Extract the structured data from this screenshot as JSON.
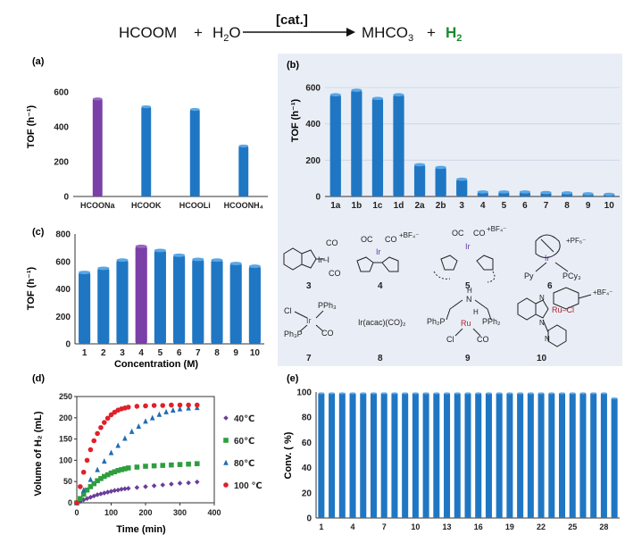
{
  "header": {
    "reactant1": "HCOOM",
    "plus1": "+",
    "reactant2": "H",
    "reactant2_sub": "2",
    "reactant2_tail": "O",
    "catalyst": "[cat.]",
    "product1": "MHCO",
    "product1_sub": "3",
    "plus2": "+",
    "product2": "H",
    "product2_sub": "2"
  },
  "colors": {
    "bar": "#1f77c4",
    "bar_dark": "#0d4f8b",
    "highlight": "#7b3fa8",
    "panel_b_bg": "#e9eef6",
    "h2_green": "#1a8a2e"
  },
  "chart_data": [
    {
      "panel": "(a)",
      "type": "bar",
      "title": "",
      "ylabel": "TOF (h⁻¹)",
      "ylim": [
        0,
        600
      ],
      "yticks": [
        0,
        200,
        400,
        600
      ],
      "categories": [
        "HCOONa",
        "HCOOK",
        "HCOOLi",
        "HCOONH₄"
      ],
      "values": [
        560,
        515,
        500,
        290
      ],
      "highlight_index": 0
    },
    {
      "panel": "(b)",
      "type": "bar",
      "ylabel": "TOF (h⁻¹)",
      "ylim": [
        0,
        600
      ],
      "yticks": [
        0,
        200,
        400,
        600
      ],
      "categories": [
        "1a",
        "1b",
        "1c",
        "1d",
        "2a",
        "2b",
        "3",
        "4",
        "5",
        "6",
        "7",
        "8",
        "9",
        "10"
      ],
      "values": [
        560,
        585,
        540,
        560,
        175,
        160,
        95,
        25,
        25,
        25,
        22,
        20,
        15,
        12
      ],
      "structure_labels": [
        "3",
        "4",
        "5",
        "6",
        "7",
        "8",
        "9",
        "10"
      ],
      "structure_text": {
        "s3": [
          "CO",
          "Ir–I",
          "CO"
        ],
        "s4": [
          "OC",
          "CO",
          "Ir",
          "+BF₄⁻"
        ],
        "s5": [
          "OC",
          "CO",
          "Ir",
          "+BF₄⁻"
        ],
        "s6": [
          "Ir",
          "+PF₆⁻",
          "Py",
          "PCy₃"
        ],
        "s7": [
          "Cl",
          "PPh₃",
          "Ir",
          "Ph₃P",
          "CO"
        ],
        "s8": [
          "Ir(acac)(CO)₂"
        ],
        "s9": [
          "H",
          "N",
          "Ph₂P",
          "Ru",
          "PPh₂",
          "H",
          "Cl",
          "CO"
        ],
        "s10": [
          "+BF₄⁻",
          "N",
          "Ru–Cl",
          "N",
          "N"
        ]
      }
    },
    {
      "panel": "(c)",
      "type": "bar",
      "ylabel": "TOF (h⁻¹)",
      "xlabel": "Concentration (M)",
      "ylim": [
        0,
        800
      ],
      "yticks": [
        0,
        200,
        400,
        600,
        800
      ],
      "categories": [
        "1",
        "2",
        "3",
        "4",
        "5",
        "6",
        "7",
        "8",
        "9",
        "10"
      ],
      "values": [
        520,
        550,
        610,
        710,
        680,
        645,
        615,
        610,
        585,
        565
      ],
      "highlight_index": 3
    },
    {
      "panel": "(d)",
      "type": "scatter",
      "xlabel": "Time (min)",
      "ylabel": "Volume of H₂ (mL)",
      "xlim": [
        0,
        400
      ],
      "ylim": [
        0,
        250
      ],
      "xticks": [
        0,
        100,
        200,
        300,
        400
      ],
      "yticks": [
        0,
        50,
        100,
        150,
        200,
        250
      ],
      "series": [
        {
          "name": "40℃",
          "marker": "diamond",
          "color": "#6a3d9a",
          "x": [
            0,
            10,
            20,
            30,
            40,
            50,
            60,
            70,
            80,
            90,
            100,
            110,
            120,
            130,
            140,
            150,
            175,
            200,
            225,
            250,
            275,
            300,
            325,
            350
          ],
          "y": [
            0,
            3,
            7,
            10,
            13,
            16,
            19,
            21,
            23,
            25,
            27,
            29,
            30,
            32,
            33,
            34,
            36,
            38,
            40,
            42,
            44,
            46,
            47,
            49
          ]
        },
        {
          "name": "60℃",
          "marker": "square",
          "color": "#2e9e3e",
          "x": [
            0,
            10,
            20,
            30,
            40,
            50,
            60,
            70,
            80,
            90,
            100,
            110,
            120,
            130,
            140,
            150,
            175,
            200,
            225,
            250,
            275,
            300,
            325,
            350
          ],
          "y": [
            0,
            10,
            20,
            30,
            38,
            45,
            52,
            57,
            62,
            66,
            70,
            73,
            76,
            78,
            80,
            82,
            84,
            86,
            87,
            88,
            89,
            90,
            91,
            92
          ]
        },
        {
          "name": "80℃",
          "marker": "triangle",
          "color": "#1f6db5",
          "x": [
            0,
            20,
            40,
            60,
            80,
            100,
            120,
            140,
            160,
            180,
            200,
            220,
            240,
            260,
            280,
            300,
            325,
            350
          ],
          "y": [
            0,
            30,
            55,
            78,
            98,
            118,
            135,
            152,
            168,
            180,
            192,
            200,
            208,
            214,
            218,
            221,
            223,
            224
          ]
        },
        {
          "name": "100 ℃",
          "marker": "circle",
          "color": "#e0202a",
          "x": [
            0,
            10,
            20,
            30,
            40,
            50,
            60,
            70,
            80,
            90,
            100,
            110,
            120,
            130,
            140,
            150,
            175,
            200,
            225,
            250,
            275,
            300,
            325,
            350
          ],
          "y": [
            0,
            38,
            72,
            100,
            125,
            146,
            163,
            177,
            189,
            199,
            207,
            213,
            218,
            221,
            223,
            225,
            227,
            228,
            229,
            229,
            230,
            230,
            230,
            230
          ]
        }
      ]
    },
    {
      "panel": "(e)",
      "type": "bar",
      "ylabel": "Conv. ( %)",
      "ylim": [
        0,
        100
      ],
      "yticks": [
        0,
        20,
        40,
        60,
        80,
        100
      ],
      "categories": [
        "1",
        "2",
        "3",
        "4",
        "5",
        "6",
        "7",
        "8",
        "9",
        "10",
        "11",
        "12",
        "13",
        "14",
        "15",
        "16",
        "17",
        "18",
        "19",
        "20",
        "21",
        "22",
        "23",
        "24",
        "25",
        "26",
        "27",
        "28",
        "29"
      ],
      "tick_labels": [
        "1",
        "4",
        "7",
        "10",
        "13",
        "16",
        "19",
        "22",
        "25",
        "28"
      ],
      "values": [
        99,
        99,
        99,
        99,
        99,
        99,
        99,
        99,
        99,
        99,
        99,
        99,
        99,
        99,
        99,
        99,
        99,
        99,
        99,
        99,
        99,
        99,
        99,
        99,
        99,
        99,
        99,
        99,
        95
      ]
    }
  ]
}
